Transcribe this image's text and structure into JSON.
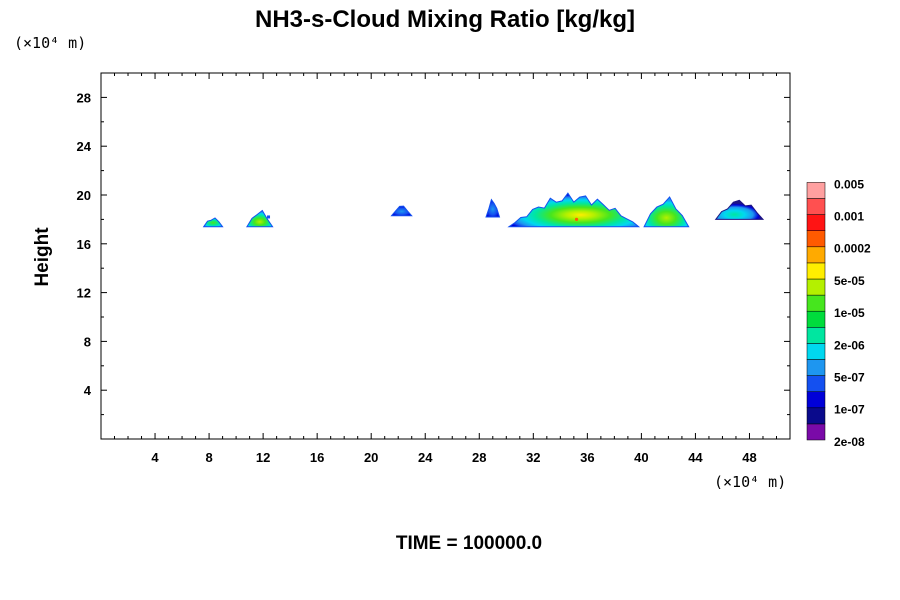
{
  "chart_data": {
    "type": "heatmap",
    "title": "NH3-s-Cloud Mixing Ratio [kg/kg]",
    "ylabel": "Height",
    "x_unit": "(×10⁴ m)",
    "y_unit": "(×10⁴ m)",
    "xlim": [
      0,
      51
    ],
    "ylim": [
      0,
      30
    ],
    "x_ticks": [
      4,
      8,
      12,
      16,
      20,
      24,
      28,
      32,
      36,
      40,
      44,
      48
    ],
    "y_ticks": [
      4,
      8,
      12,
      16,
      20,
      24,
      28
    ],
    "grid": false,
    "colorbar": {
      "placement": "right",
      "colors": [
        "#7a0aa8",
        "#0a0a8c",
        "#0000d8",
        "#1450f0",
        "#1e96f0",
        "#00d8f0",
        "#00e6a0",
        "#00dc3c",
        "#46e61e",
        "#b4f000",
        "#ffee00",
        "#ffaa00",
        "#ff5a00",
        "#ff1414",
        "#ff5050",
        "#ffa0a0"
      ],
      "labels": [
        "2e-08",
        "1e-07",
        "5e-07",
        "2e-06",
        "1e-05",
        "5e-05",
        "0.0002",
        "0.001",
        "0.005"
      ]
    },
    "cloud_regions": [
      {
        "x": [
          7.6,
          9.0
        ],
        "y": [
          17.4,
          18.2
        ],
        "peak": "2e-06"
      },
      {
        "x": [
          10.8,
          12.7
        ],
        "y": [
          17.4,
          18.8
        ],
        "peak": "1e-05"
      },
      {
        "x": [
          21.5,
          23.0
        ],
        "y": [
          18.3,
          19.2
        ],
        "peak": "1e-07"
      },
      {
        "x": [
          28.5,
          29.5
        ],
        "y": [
          18.2,
          19.7
        ],
        "peak": "5e-07"
      },
      {
        "x": [
          30.2,
          39.8
        ],
        "y": [
          17.4,
          20.2
        ],
        "peak": "0.0002"
      },
      {
        "x": [
          40.2,
          43.5
        ],
        "y": [
          17.4,
          19.9
        ],
        "peak": "1e-05"
      },
      {
        "x": [
          45.5,
          49.0
        ],
        "y": [
          18.0,
          19.7
        ],
        "peak": "2e-06"
      }
    ]
  },
  "footer": {
    "time_label": "TIME = 100000.0"
  }
}
